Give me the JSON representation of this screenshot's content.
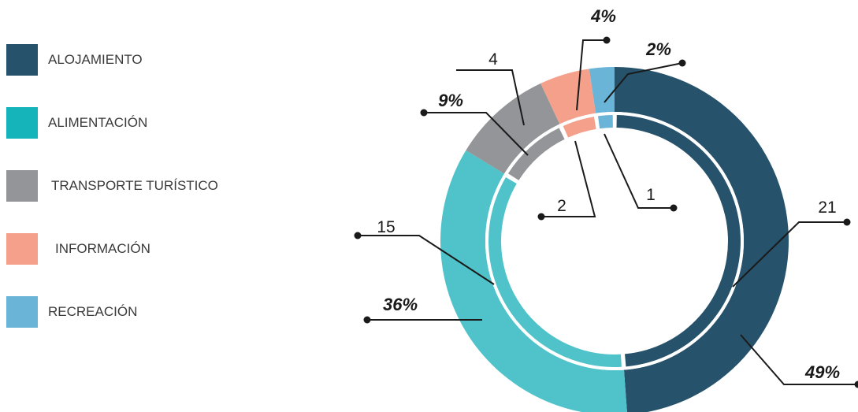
{
  "chart_data": {
    "type": "pie",
    "title": "",
    "categories": [
      "ALOJAMIENTO",
      "ALIMENTACIÓN",
      "TRANSPORTE TURÍSTICO",
      "INFORMACIÓN",
      "RECREACIÓN"
    ],
    "values": [
      21,
      15,
      4,
      2,
      1
    ],
    "percent_labels": [
      "49%",
      "36%",
      "9%",
      "4%",
      "2%"
    ],
    "count_labels": [
      "21",
      "15",
      "4",
      "2",
      "1"
    ],
    "colors": [
      "#26526b",
      "#4fc3c9",
      "#939598",
      "#f4a08b",
      "#6ab4d8"
    ],
    "legend_colors": [
      "#26526b",
      "#15b4bb",
      "#939598",
      "#f4a08b",
      "#6ab4d8"
    ],
    "legend_position": "left"
  }
}
